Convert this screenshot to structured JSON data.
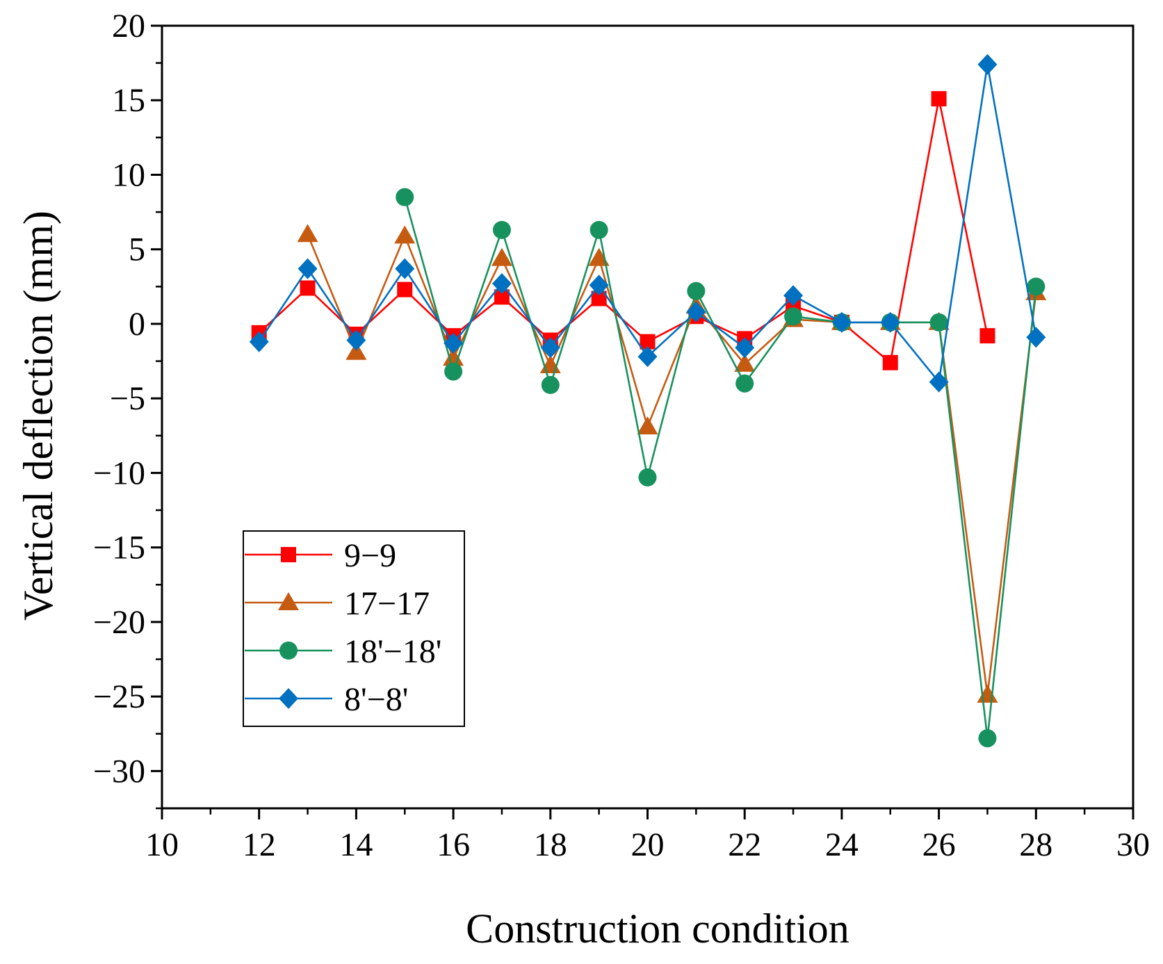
{
  "chart_data": {
    "type": "line",
    "title": "",
    "xlabel": "Construction condition",
    "ylabel": "Vertical deflection (mm)",
    "xlim": [
      10,
      30
    ],
    "ylim": [
      -32.5,
      20
    ],
    "x_major_ticks": [
      10,
      12,
      14,
      16,
      18,
      20,
      22,
      24,
      26,
      28,
      30
    ],
    "x_tick_labels": [
      "10",
      "12",
      "14",
      "16",
      "18",
      "20",
      "22",
      "24",
      "26",
      "28",
      "30"
    ],
    "y_major_ticks": [
      -30,
      -25,
      -20,
      -15,
      -10,
      -5,
      0,
      5,
      10,
      15,
      20
    ],
    "y_tick_labels": [
      "−30",
      "−25",
      "−20",
      "−15",
      "−10",
      "−5",
      "0",
      "5",
      "10",
      "15",
      "20"
    ],
    "grid": false,
    "legend_position": "bottom-left",
    "series": [
      {
        "name": "9−9",
        "color": "#ff0000",
        "marker": "square",
        "x": [
          12,
          13,
          14,
          15,
          16,
          17,
          18,
          19,
          20,
          21,
          22,
          23,
          24,
          25,
          26,
          27
        ],
        "y": [
          -0.6,
          2.4,
          -0.7,
          2.3,
          -0.8,
          1.8,
          -1.1,
          1.7,
          -1.2,
          0.5,
          -1.0,
          1.2,
          0.1,
          -2.6,
          15.1,
          -0.8
        ]
      },
      {
        "name": "17−17",
        "color": "#c55a11",
        "marker": "triangle",
        "x": [
          13,
          14,
          15,
          16,
          17,
          18,
          19,
          20,
          21,
          22,
          23,
          24,
          25,
          26,
          27,
          28
        ],
        "y": [
          6.0,
          -1.9,
          5.9,
          -2.3,
          4.4,
          -2.8,
          4.4,
          -6.9,
          1.2,
          -2.7,
          0.3,
          0.1,
          0.1,
          0.1,
          -24.9,
          2.1
        ]
      },
      {
        "name": "18'−18'",
        "color": "#17915e",
        "marker": "circle",
        "x": [
          15,
          16,
          17,
          18,
          19,
          20,
          21,
          22,
          23,
          24,
          25,
          26,
          27,
          28
        ],
        "y": [
          8.5,
          -3.2,
          6.3,
          -4.1,
          6.3,
          -10.3,
          2.2,
          -4.0,
          0.5,
          0.1,
          0.1,
          0.1,
          -27.8,
          2.5
        ]
      },
      {
        "name": "8'−8'",
        "color": "#0070c0",
        "marker": "diamond",
        "x": [
          12,
          13,
          14,
          15,
          16,
          17,
          18,
          19,
          20,
          21,
          22,
          23,
          24,
          25,
          26,
          27,
          28
        ],
        "y": [
          -1.2,
          3.7,
          -1.1,
          3.7,
          -1.3,
          2.7,
          -1.6,
          2.6,
          -2.2,
          0.8,
          -1.6,
          1.9,
          0.1,
          0.1,
          -3.9,
          17.4,
          -0.9
        ]
      }
    ]
  }
}
